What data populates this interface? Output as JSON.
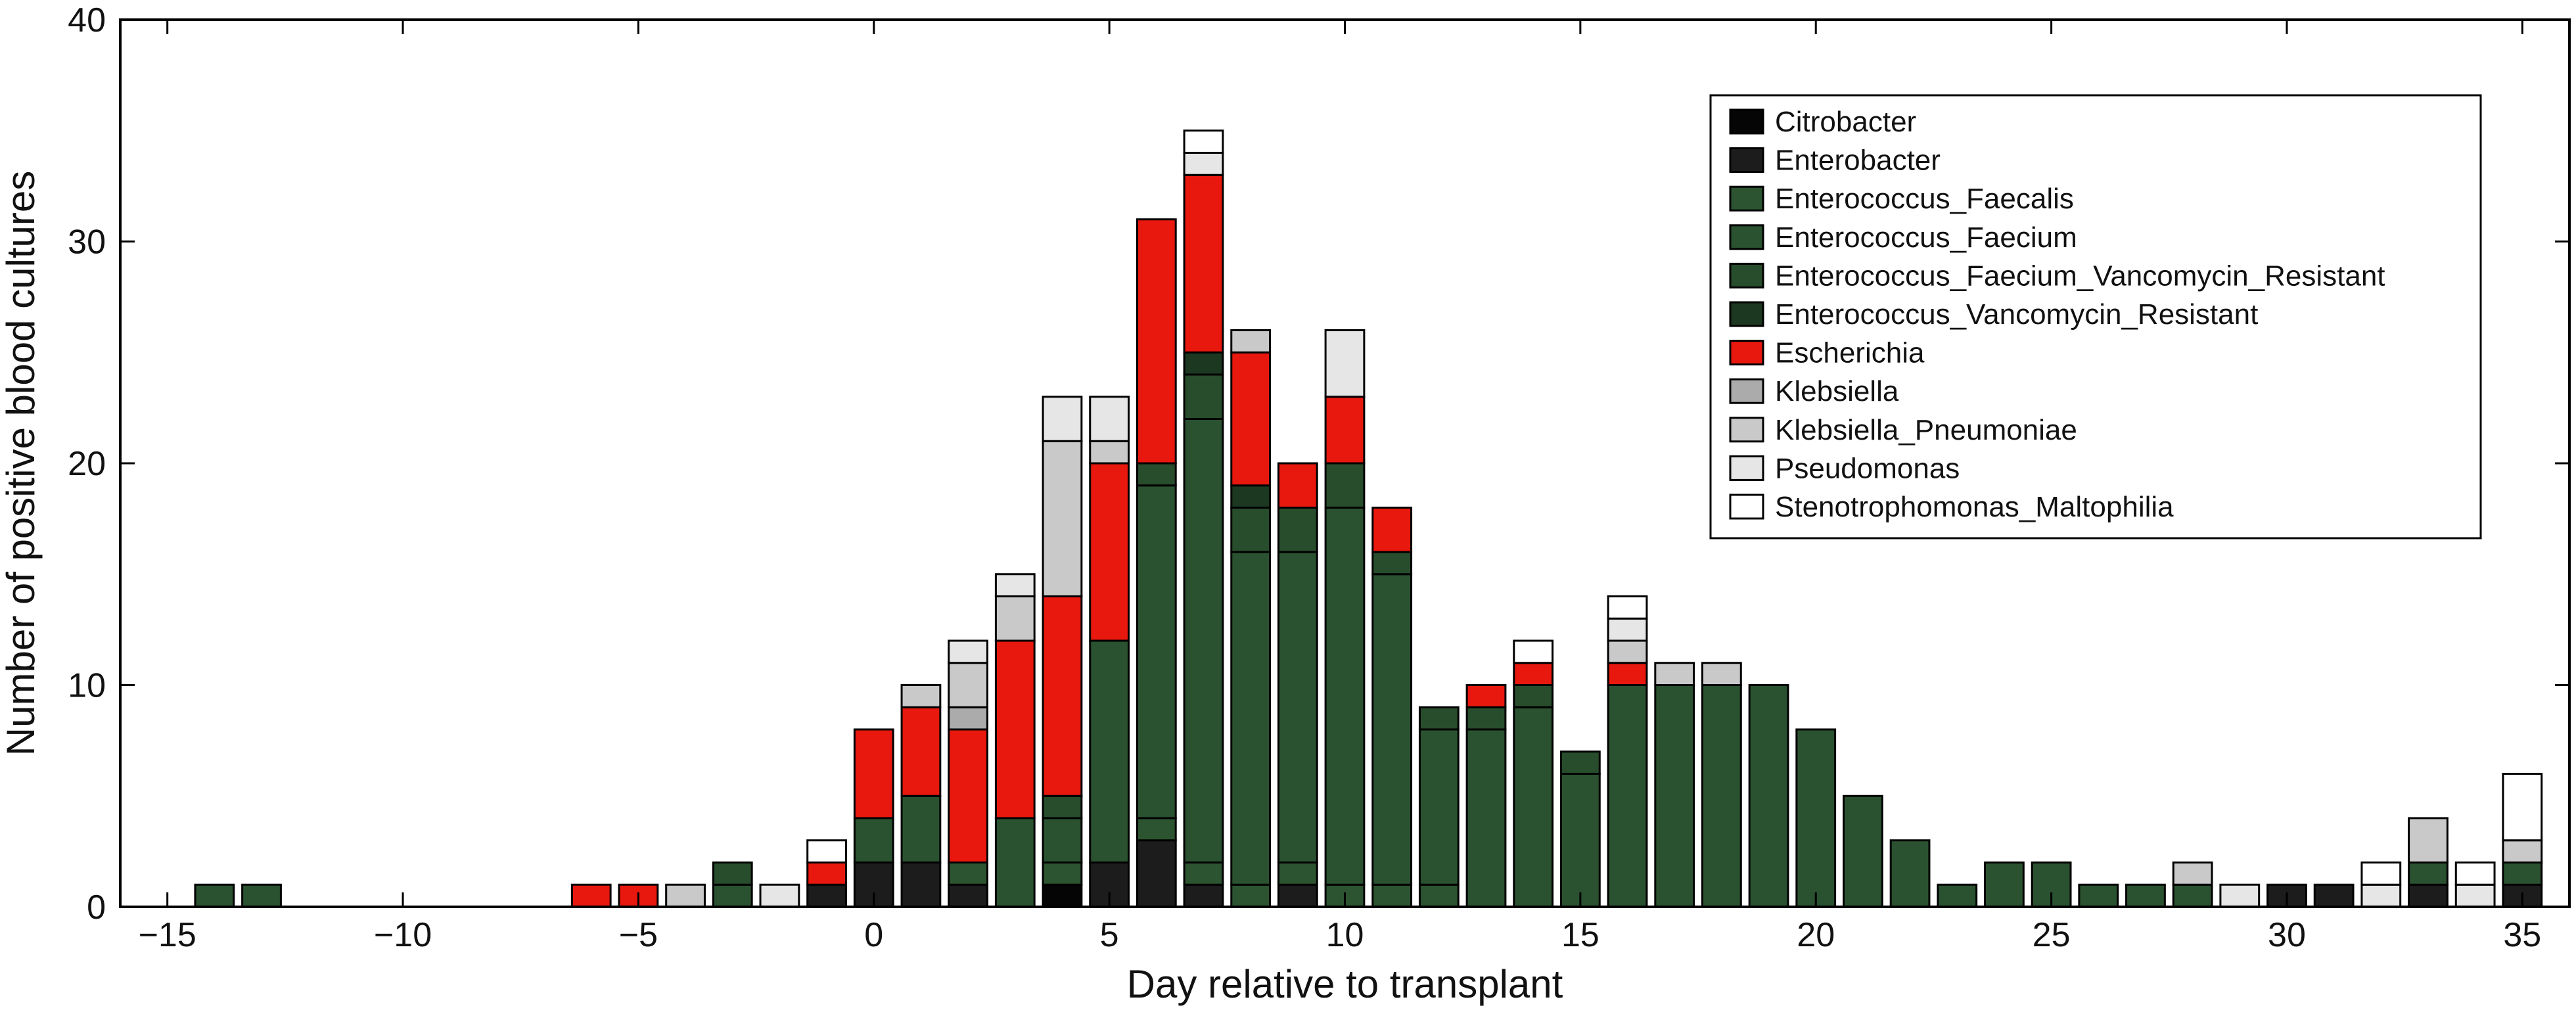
{
  "chart_data": {
    "type": "bar",
    "stacked": true,
    "title": "",
    "xlabel": "Day relative to transplant",
    "ylabel": "Number of positive blood cultures",
    "xlim": [
      -16,
      36
    ],
    "ylim": [
      0,
      40
    ],
    "x_ticks": [
      -15,
      -10,
      -5,
      0,
      5,
      10,
      15,
      20,
      25,
      30,
      35
    ],
    "y_ticks": [
      0,
      10,
      20,
      30,
      40
    ],
    "grid": false,
    "legend_position": "top-right",
    "x": [
      -14,
      -13,
      -6,
      -5,
      -4,
      -3,
      -2,
      -1,
      0,
      1,
      2,
      3,
      4,
      5,
      6,
      7,
      8,
      9,
      10,
      11,
      12,
      13,
      14,
      15,
      16,
      17,
      18,
      19,
      20,
      21,
      22,
      23,
      24,
      25,
      26,
      27,
      28,
      29,
      30,
      31,
      32,
      33,
      34,
      35
    ],
    "series": [
      {
        "name": "Citrobacter",
        "color": "#050505",
        "values": [
          0,
          0,
          0,
          0,
          0,
          0,
          0,
          0,
          0,
          0,
          0,
          0,
          1,
          0,
          0,
          0,
          0,
          0,
          0,
          0,
          0,
          0,
          0,
          0,
          0,
          0,
          0,
          0,
          0,
          0,
          0,
          0,
          0,
          0,
          0,
          0,
          0,
          0,
          0,
          0,
          0,
          0,
          0,
          0
        ]
      },
      {
        "name": "Enterobacter",
        "color": "#1c1c1c",
        "values": [
          0,
          0,
          0,
          0,
          0,
          0,
          0,
          1,
          2,
          2,
          1,
          0,
          0,
          2,
          3,
          1,
          0,
          1,
          0,
          0,
          0,
          0,
          0,
          0,
          0,
          0,
          0,
          0,
          0,
          0,
          0,
          0,
          0,
          0,
          0,
          0,
          0,
          0,
          1,
          1,
          0,
          1,
          0,
          1
        ]
      },
      {
        "name": "Enterococcus_Faecalis",
        "color": "#2c5430",
        "values": [
          0,
          0,
          0,
          0,
          0,
          0,
          0,
          0,
          0,
          0,
          1,
          0,
          1,
          0,
          1,
          1,
          1,
          1,
          1,
          1,
          1,
          0,
          0,
          0,
          0,
          0,
          0,
          0,
          0,
          0,
          0,
          0,
          0,
          0,
          0,
          0,
          0,
          0,
          0,
          0,
          0,
          0,
          0,
          0
        ]
      },
      {
        "name": "Enterococcus_Faecium",
        "color": "#2a5230",
        "values": [
          1,
          1,
          0,
          0,
          0,
          1,
          0,
          0,
          2,
          3,
          0,
          4,
          2,
          10,
          15,
          20,
          15,
          14,
          17,
          14,
          7,
          8,
          9,
          6,
          10,
          10,
          10,
          10,
          8,
          5,
          3,
          1,
          2,
          2,
          1,
          1,
          1,
          0,
          0,
          0,
          0,
          1,
          0,
          1
        ]
      },
      {
        "name": "Enterococcus_Faecium_Vancomycin_Resistant",
        "color": "#284d2c",
        "values": [
          0,
          0,
          0,
          0,
          0,
          1,
          0,
          0,
          0,
          0,
          0,
          0,
          1,
          0,
          1,
          2,
          2,
          2,
          2,
          1,
          1,
          1,
          1,
          1,
          0,
          0,
          0,
          0,
          0,
          0,
          0,
          0,
          0,
          0,
          0,
          0,
          0,
          0,
          0,
          0,
          0,
          0,
          0,
          0
        ]
      },
      {
        "name": "Enterococcus_Vancomycin_Resistant",
        "color": "#1d3820",
        "values": [
          0,
          0,
          0,
          0,
          0,
          0,
          0,
          0,
          0,
          0,
          0,
          0,
          0,
          0,
          0,
          1,
          1,
          0,
          0,
          0,
          0,
          0,
          0,
          0,
          0,
          0,
          0,
          0,
          0,
          0,
          0,
          0,
          0,
          0,
          0,
          0,
          0,
          0,
          0,
          0,
          0,
          0,
          0,
          0
        ]
      },
      {
        "name": "Escherichia",
        "color": "#e8180e",
        "values": [
          0,
          0,
          1,
          1,
          0,
          0,
          0,
          1,
          4,
          4,
          6,
          8,
          9,
          8,
          11,
          8,
          6,
          2,
          3,
          2,
          0,
          1,
          1,
          0,
          1,
          0,
          0,
          0,
          0,
          0,
          0,
          0,
          0,
          0,
          0,
          0,
          0,
          0,
          0,
          0,
          0,
          0,
          0,
          0
        ]
      },
      {
        "name": "Klebsiella",
        "color": "#ababab",
        "values": [
          0,
          0,
          0,
          0,
          0,
          0,
          0,
          0,
          0,
          0,
          1,
          0,
          0,
          0,
          0,
          0,
          0,
          0,
          0,
          0,
          0,
          0,
          0,
          0,
          0,
          0,
          0,
          0,
          0,
          0,
          0,
          0,
          0,
          0,
          0,
          0,
          0,
          0,
          0,
          0,
          0,
          0,
          0,
          0
        ]
      },
      {
        "name": "Klebsiella_Pneumoniae",
        "color": "#c9c9c9",
        "values": [
          0,
          0,
          0,
          0,
          1,
          0,
          0,
          0,
          0,
          1,
          2,
          2,
          7,
          1,
          0,
          0,
          1,
          0,
          0,
          0,
          0,
          0,
          0,
          0,
          1,
          1,
          1,
          0,
          0,
          0,
          0,
          0,
          0,
          0,
          0,
          0,
          1,
          0,
          0,
          0,
          0,
          2,
          0,
          1
        ]
      },
      {
        "name": "Pseudomonas",
        "color": "#e6e6e6",
        "values": [
          0,
          0,
          0,
          0,
          0,
          0,
          1,
          0,
          0,
          0,
          1,
          1,
          2,
          2,
          0,
          1,
          0,
          0,
          3,
          0,
          0,
          0,
          0,
          0,
          1,
          0,
          0,
          0,
          0,
          0,
          0,
          0,
          0,
          0,
          0,
          0,
          0,
          1,
          0,
          0,
          1,
          0,
          1,
          0
        ]
      },
      {
        "name": "Stenotrophomonas_Maltophilia",
        "color": "#ffffff",
        "values": [
          0,
          0,
          0,
          0,
          0,
          0,
          0,
          1,
          0,
          0,
          0,
          0,
          0,
          0,
          0,
          1,
          0,
          0,
          0,
          0,
          0,
          0,
          1,
          0,
          1,
          0,
          0,
          0,
          0,
          0,
          0,
          0,
          0,
          0,
          0,
          0,
          0,
          0,
          0,
          0,
          1,
          0,
          1,
          3
        ]
      }
    ]
  }
}
